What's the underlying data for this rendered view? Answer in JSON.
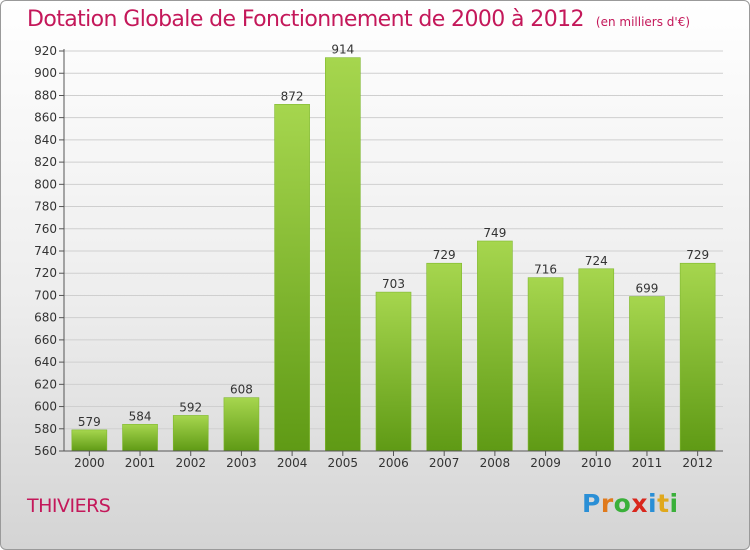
{
  "title": "Dotation Globale de Fonctionnement de 2000 à 2012",
  "subtitle": "(en milliers d'€)",
  "city": "THIVIERS",
  "logo": {
    "letters": [
      "P",
      "r",
      "o",
      "x",
      "i",
      "t",
      "i"
    ],
    "colors": [
      "#2a8fd6",
      "#e07a1c",
      "#3ab03a",
      "#d9261c",
      "#2a8fd6",
      "#e0a81c",
      "#3ab03a"
    ]
  },
  "colors": {
    "title": "#c4185a",
    "bar_top": "#a6d64e",
    "bar_bottom": "#5f9a15"
  },
  "chart_data": {
    "type": "bar",
    "title": "Dotation Globale de Fonctionnement de 2000 à 2012",
    "subtitle": "(en milliers d'€)",
    "xlabel": "",
    "ylabel": "",
    "categories": [
      "2000",
      "2001",
      "2002",
      "2003",
      "2004",
      "2005",
      "2006",
      "2007",
      "2008",
      "2009",
      "2010",
      "2011",
      "2012"
    ],
    "values": [
      579,
      584,
      592,
      608,
      872,
      914,
      703,
      729,
      749,
      716,
      724,
      699,
      729
    ],
    "ylim": [
      560,
      920
    ],
    "ytick_step": 20,
    "grid": true,
    "data_labels": true
  }
}
